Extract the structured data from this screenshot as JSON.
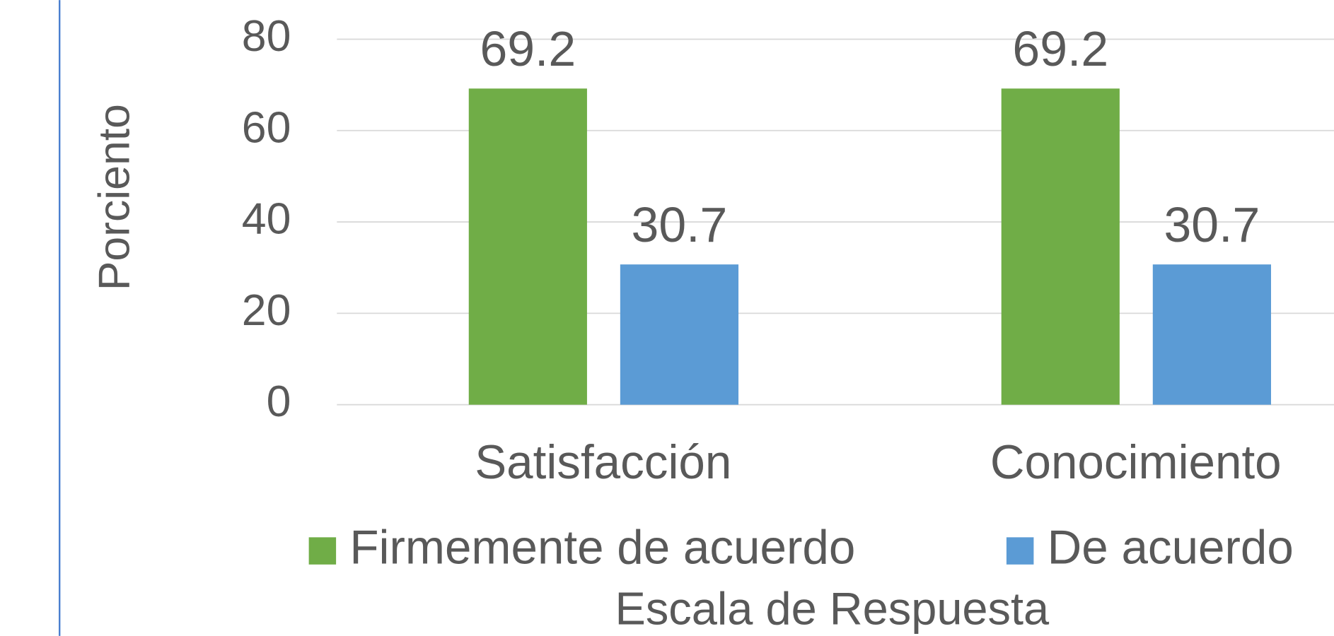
{
  "chart_data": {
    "type": "bar",
    "categories": [
      "Satisfacción",
      "Conocimiento"
    ],
    "series": [
      {
        "name": "Firmemente de acuerdo",
        "color": "#70ad47",
        "values": [
          69.2,
          69.2
        ]
      },
      {
        "name": "De acuerdo",
        "color": "#5b9bd5",
        "values": [
          30.7,
          30.7
        ]
      }
    ],
    "x_label": "Escala de Respuesta",
    "y_label": "Porciento",
    "ylim": [
      0,
      80
    ],
    "yticks": [
      0,
      20,
      40,
      60,
      80
    ],
    "grid": true,
    "legend": "bottom"
  }
}
